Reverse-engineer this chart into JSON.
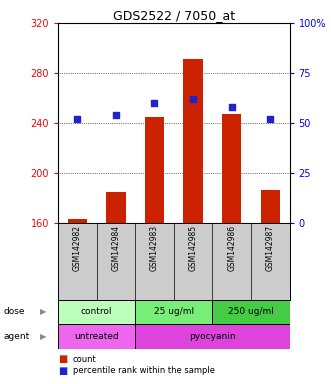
{
  "title": "GDS2522 / 7050_at",
  "samples": [
    "GSM142982",
    "GSM142984",
    "GSM142983",
    "GSM142985",
    "GSM142986",
    "GSM142987"
  ],
  "counts": [
    163,
    185,
    245,
    291,
    247,
    186
  ],
  "percentiles": [
    52,
    54,
    60,
    62,
    58,
    52
  ],
  "bar_color": "#cc2200",
  "dot_color": "#2222cc",
  "ylim_left": [
    160,
    320
  ],
  "ylim_right": [
    0,
    100
  ],
  "yticks_left": [
    160,
    200,
    240,
    280,
    320
  ],
  "yticks_right": [
    0,
    25,
    50,
    75,
    100
  ],
  "dose_groups": [
    {
      "label": "control",
      "span": [
        0,
        2
      ],
      "color": "#bbffbb"
    },
    {
      "label": "25 ug/ml",
      "span": [
        2,
        4
      ],
      "color": "#77ee77"
    },
    {
      "label": "250 ug/ml",
      "span": [
        4,
        6
      ],
      "color": "#44cc44"
    }
  ],
  "agent_groups": [
    {
      "label": "untreated",
      "span": [
        0,
        2
      ],
      "color": "#ee66ee"
    },
    {
      "label": "pyocyanin",
      "span": [
        2,
        6
      ],
      "color": "#dd44dd"
    }
  ],
  "legend_items": [
    {
      "label": "count",
      "color": "#cc2200"
    },
    {
      "label": "percentile rank within the sample",
      "color": "#2222cc"
    }
  ]
}
